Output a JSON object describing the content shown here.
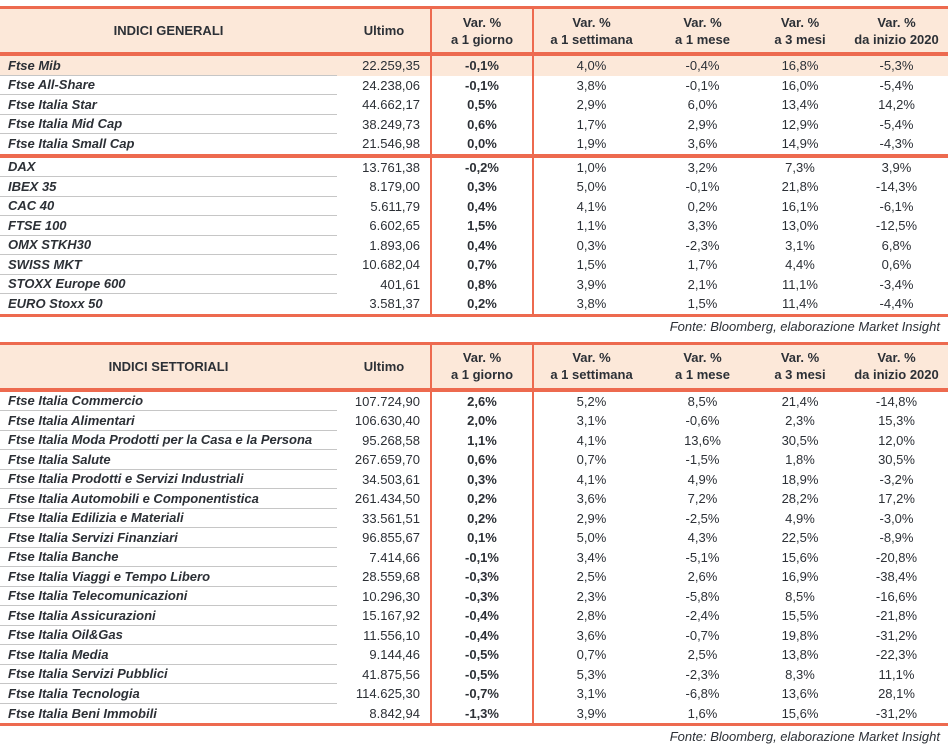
{
  "colors": {
    "salmon": "#ed6a4f",
    "peach": "#fce8d9",
    "ink": "#2c3036",
    "hairline": "#c6c6c6"
  },
  "tables": [
    {
      "title": "INDICI GENERALI",
      "ultimo_label": "Ultimo",
      "var_cols": [
        {
          "top": "Var. %",
          "bottom": "a 1 giorno"
        },
        {
          "top": "Var. %",
          "bottom": "a 1 settimana"
        },
        {
          "top": "Var. %",
          "bottom": "a 1 mese"
        },
        {
          "top": "Var. %",
          "bottom": "a 3 mesi"
        },
        {
          "top": "Var. %",
          "bottom": "da inizio 2020"
        }
      ],
      "fonte": "Fonte: Bloomberg, elaborazione Market Insight",
      "highlight": {
        "group": 0,
        "row": 0
      },
      "groups": [
        [
          [
            "Ftse Mib",
            "22.259,35",
            "-0,1%",
            "4,0%",
            "-0,4%",
            "16,8%",
            "-5,3%"
          ],
          [
            "Ftse All-Share",
            "24.238,06",
            "-0,1%",
            "3,8%",
            "-0,1%",
            "16,0%",
            "-5,4%"
          ],
          [
            "Ftse Italia Star",
            "44.662,17",
            "0,5%",
            "2,9%",
            "6,0%",
            "13,4%",
            "14,2%"
          ],
          [
            "Ftse Italia Mid Cap",
            "38.249,73",
            "0,6%",
            "1,7%",
            "2,9%",
            "12,9%",
            "-5,4%"
          ],
          [
            "Ftse Italia Small Cap",
            "21.546,98",
            "0,0%",
            "1,9%",
            "3,6%",
            "14,9%",
            "-4,3%"
          ]
        ],
        [
          [
            "DAX",
            "13.761,38",
            "-0,2%",
            "1,0%",
            "3,2%",
            "7,3%",
            "3,9%"
          ],
          [
            "IBEX 35",
            "8.179,00",
            "0,3%",
            "5,0%",
            "-0,1%",
            "21,8%",
            "-14,3%"
          ],
          [
            "CAC 40",
            "5.611,79",
            "0,4%",
            "4,1%",
            "0,2%",
            "16,1%",
            "-6,1%"
          ],
          [
            "FTSE 100",
            "6.602,65",
            "1,5%",
            "1,1%",
            "3,3%",
            "13,0%",
            "-12,5%"
          ],
          [
            "OMX STKH30",
            "1.893,06",
            "0,4%",
            "0,3%",
            "-2,3%",
            "3,1%",
            "6,8%"
          ],
          [
            "SWISS MKT",
            "10.682,04",
            "0,7%",
            "1,5%",
            "1,7%",
            "4,4%",
            "0,6%"
          ],
          [
            "STOXX Europe 600",
            "401,61",
            "0,8%",
            "3,9%",
            "2,1%",
            "11,1%",
            "-3,4%"
          ],
          [
            "EURO Stoxx 50",
            "3.581,37",
            "0,2%",
            "3,8%",
            "1,5%",
            "11,4%",
            "-4,4%"
          ]
        ]
      ]
    },
    {
      "title": "INDICI SETTORIALI",
      "ultimo_label": "Ultimo",
      "var_cols": [
        {
          "top": "Var. %",
          "bottom": "a 1 giorno"
        },
        {
          "top": "Var. %",
          "bottom": "a 1 settimana"
        },
        {
          "top": "Var. %",
          "bottom": "a 1 mese"
        },
        {
          "top": "Var. %",
          "bottom": "a 3 mesi"
        },
        {
          "top": "Var. %",
          "bottom": "da inizio 2020"
        }
      ],
      "fonte": "Fonte: Bloomberg, elaborazione Market Insight",
      "groups": [
        [
          [
            "Ftse Italia Commercio",
            "107.724,90",
            "2,6%",
            "5,2%",
            "8,5%",
            "21,4%",
            "-14,8%"
          ],
          [
            "Ftse Italia Alimentari",
            "106.630,40",
            "2,0%",
            "3,1%",
            "-0,6%",
            "2,3%",
            "15,3%"
          ],
          [
            "Ftse Italia Moda Prodotti per la Casa e la Persona",
            "95.268,58",
            "1,1%",
            "4,1%",
            "13,6%",
            "30,5%",
            "12,0%"
          ],
          [
            "Ftse Italia Salute",
            "267.659,70",
            "0,6%",
            "0,7%",
            "-1,5%",
            "1,8%",
            "30,5%"
          ],
          [
            "Ftse Italia Prodotti e Servizi Industriali",
            "34.503,61",
            "0,3%",
            "4,1%",
            "4,9%",
            "18,9%",
            "-3,2%"
          ],
          [
            "Ftse Italia Automobili e Componentistica",
            "261.434,50",
            "0,2%",
            "3,6%",
            "7,2%",
            "28,2%",
            "17,2%"
          ],
          [
            "Ftse Italia Edilizia e Materiali",
            "33.561,51",
            "0,2%",
            "2,9%",
            "-2,5%",
            "4,9%",
            "-3,0%"
          ],
          [
            "Ftse Italia Servizi Finanziari",
            "96.855,67",
            "0,1%",
            "5,0%",
            "4,3%",
            "22,5%",
            "-8,9%"
          ],
          [
            "Ftse Italia Banche",
            "7.414,66",
            "-0,1%",
            "3,4%",
            "-5,1%",
            "15,6%",
            "-20,8%"
          ],
          [
            "Ftse Italia Viaggi e Tempo Libero",
            "28.559,68",
            "-0,3%",
            "2,5%",
            "2,6%",
            "16,9%",
            "-38,4%"
          ],
          [
            "Ftse Italia Telecomunicazioni",
            "10.296,30",
            "-0,3%",
            "2,3%",
            "-5,8%",
            "8,5%",
            "-16,6%"
          ],
          [
            "Ftse Italia Assicurazioni",
            "15.167,92",
            "-0,4%",
            "2,8%",
            "-2,4%",
            "15,5%",
            "-21,8%"
          ],
          [
            "Ftse Italia Oil&Gas",
            "11.556,10",
            "-0,4%",
            "3,6%",
            "-0,7%",
            "19,8%",
            "-31,2%"
          ],
          [
            "Ftse Italia Media",
            "9.144,46",
            "-0,5%",
            "0,7%",
            "2,5%",
            "13,8%",
            "-22,3%"
          ],
          [
            "Ftse Italia Servizi Pubblici",
            "41.875,56",
            "-0,5%",
            "5,3%",
            "-2,3%",
            "8,3%",
            "11,1%"
          ],
          [
            "Ftse Italia Tecnologia",
            "114.625,30",
            "-0,7%",
            "3,1%",
            "-6,8%",
            "13,6%",
            "28,1%"
          ],
          [
            "Ftse Italia Beni Immobili",
            "8.842,94",
            "-1,3%",
            "3,9%",
            "1,6%",
            "15,6%",
            "-31,2%"
          ]
        ]
      ]
    }
  ]
}
